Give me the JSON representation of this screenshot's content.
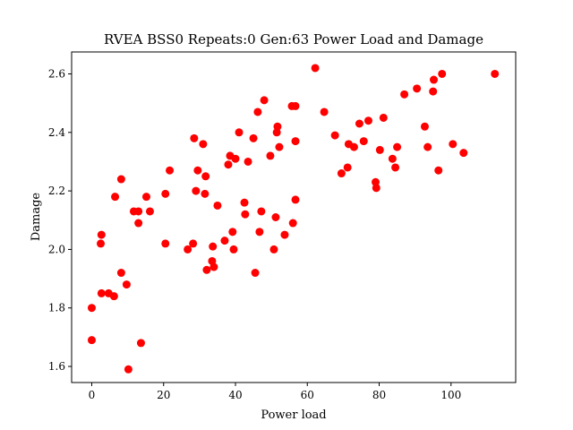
{
  "chart_data": {
    "type": "scatter",
    "title": "RVEA BSS0 Repeats:0 Gen:63 Power Load and Damage",
    "xlabel": "Power load",
    "ylabel": "Damage",
    "xlim": [
      -5.6,
      118.0
    ],
    "ylim": [
      1.545,
      2.675
    ],
    "xticks": [
      0,
      20,
      40,
      60,
      80,
      100
    ],
    "yticks": [
      1.6,
      1.8,
      2.0,
      2.2,
      2.4,
      2.6
    ],
    "xtick_labels": [
      "0",
      "20",
      "40",
      "60",
      "80",
      "100"
    ],
    "ytick_labels": [
      "1.6",
      "1.8",
      "2.0",
      "2.2",
      "2.4",
      "2.6"
    ],
    "grid": false,
    "marker_color": "#ff0000",
    "series": [
      {
        "points": [
          [
            0.0,
            1.8
          ],
          [
            0.0,
            1.69
          ],
          [
            2.5,
            2.02
          ],
          [
            2.7,
            2.05
          ],
          [
            2.7,
            1.85
          ],
          [
            4.7,
            1.85
          ],
          [
            6.2,
            1.84
          ],
          [
            6.5,
            2.18
          ],
          [
            8.2,
            2.24
          ],
          [
            8.2,
            1.92
          ],
          [
            9.7,
            1.88
          ],
          [
            10.2,
            1.59
          ],
          [
            11.7,
            2.13
          ],
          [
            13.0,
            2.13
          ],
          [
            13.0,
            2.09
          ],
          [
            13.7,
            1.68
          ],
          [
            15.2,
            2.18
          ],
          [
            16.2,
            2.13
          ],
          [
            20.5,
            2.19
          ],
          [
            20.5,
            2.02
          ],
          [
            21.7,
            2.27
          ],
          [
            26.7,
            2.0
          ],
          [
            28.2,
            2.02
          ],
          [
            28.5,
            2.38
          ],
          [
            29.0,
            2.2
          ],
          [
            29.5,
            2.27
          ],
          [
            31.0,
            2.36
          ],
          [
            31.5,
            2.19
          ],
          [
            31.7,
            2.25
          ],
          [
            32.0,
            1.93
          ],
          [
            33.5,
            1.96
          ],
          [
            33.7,
            2.01
          ],
          [
            34.0,
            1.94
          ],
          [
            35.0,
            2.15
          ],
          [
            37.0,
            2.03
          ],
          [
            38.0,
            2.29
          ],
          [
            38.5,
            2.32
          ],
          [
            39.2,
            2.06
          ],
          [
            39.5,
            2.0
          ],
          [
            40.0,
            2.31
          ],
          [
            41.0,
            2.4
          ],
          [
            42.5,
            2.16
          ],
          [
            42.7,
            2.12
          ],
          [
            43.5,
            2.3
          ],
          [
            45.0,
            2.38
          ],
          [
            45.5,
            1.92
          ],
          [
            46.2,
            2.47
          ],
          [
            46.7,
            2.06
          ],
          [
            47.2,
            2.13
          ],
          [
            48.0,
            2.51
          ],
          [
            49.7,
            2.32
          ],
          [
            50.7,
            2.0
          ],
          [
            51.2,
            2.11
          ],
          [
            51.5,
            2.4
          ],
          [
            51.7,
            2.42
          ],
          [
            52.2,
            2.35
          ],
          [
            53.7,
            2.05
          ],
          [
            55.7,
            2.49
          ],
          [
            56.0,
            2.09
          ],
          [
            56.7,
            2.37
          ],
          [
            56.7,
            2.49
          ],
          [
            56.7,
            2.17
          ],
          [
            62.2,
            2.62
          ],
          [
            64.7,
            2.47
          ],
          [
            67.7,
            2.39
          ],
          [
            69.5,
            2.26
          ],
          [
            71.2,
            2.28
          ],
          [
            71.5,
            2.36
          ],
          [
            73.0,
            2.35
          ],
          [
            74.5,
            2.43
          ],
          [
            75.7,
            2.37
          ],
          [
            77.0,
            2.44
          ],
          [
            79.0,
            2.23
          ],
          [
            79.2,
            2.21
          ],
          [
            80.2,
            2.34
          ],
          [
            81.2,
            2.45
          ],
          [
            83.7,
            2.31
          ],
          [
            84.5,
            2.28
          ],
          [
            85.0,
            2.35
          ],
          [
            87.0,
            2.53
          ],
          [
            90.5,
            2.55
          ],
          [
            92.7,
            2.42
          ],
          [
            93.5,
            2.35
          ],
          [
            95.0,
            2.54
          ],
          [
            95.2,
            2.58
          ],
          [
            96.5,
            2.27
          ],
          [
            97.5,
            2.6
          ],
          [
            100.5,
            2.36
          ],
          [
            103.5,
            2.33
          ],
          [
            112.2,
            2.6
          ]
        ]
      }
    ]
  }
}
